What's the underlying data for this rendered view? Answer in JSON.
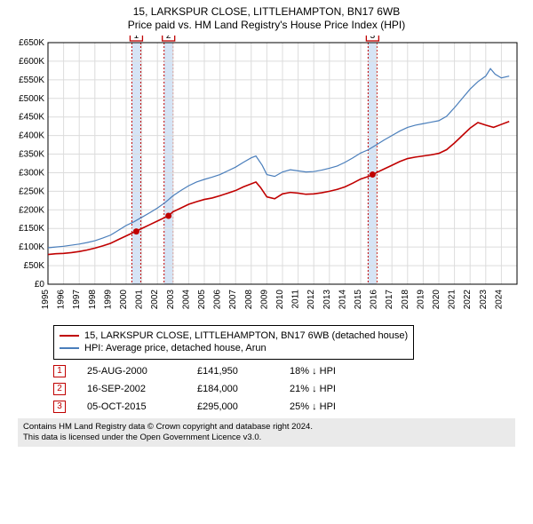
{
  "title_line1": "15, LARKSPUR CLOSE, LITTLEHAMPTON, BN17 6WB",
  "title_line2": "Price paid vs. HM Land Registry's House Price Index (HPI)",
  "chart": {
    "type": "line",
    "background_color": "#ffffff",
    "grid_color": "#dcdcdc",
    "x": {
      "min": 1995,
      "max": 2025,
      "tick_step": 1,
      "labels": [
        "1995",
        "1996",
        "1997",
        "1998",
        "1999",
        "2000",
        "2001",
        "2002",
        "2003",
        "2004",
        "2005",
        "2006",
        "2007",
        "2008",
        "2009",
        "2010",
        "2011",
        "2012",
        "2013",
        "2014",
        "2015",
        "2016",
        "2017",
        "2018",
        "2019",
        "2020",
        "2021",
        "2022",
        "2023",
        "2024"
      ]
    },
    "y": {
      "min": 0,
      "max": 650000,
      "tick_step": 50000,
      "labels": [
        "£0",
        "£50K",
        "£100K",
        "£150K",
        "£200K",
        "£250K",
        "£300K",
        "£350K",
        "£400K",
        "£450K",
        "£500K",
        "£550K",
        "£600K",
        "£650K"
      ]
    },
    "series": [
      {
        "name": "price_paid",
        "legend": "15, LARKSPUR CLOSE, LITTLEHAMPTON, BN17 6WB (detached house)",
        "color": "#c00000",
        "width": 1.6,
        "data": [
          [
            1995.0,
            80000
          ],
          [
            1995.5,
            82000
          ],
          [
            1996.0,
            83000
          ],
          [
            1996.5,
            85000
          ],
          [
            1997.0,
            88000
          ],
          [
            1997.5,
            92000
          ],
          [
            1998.0,
            97000
          ],
          [
            1998.5,
            103000
          ],
          [
            1999.0,
            110000
          ],
          [
            1999.5,
            120000
          ],
          [
            2000.0,
            130000
          ],
          [
            2000.6,
            141950
          ],
          [
            2001.0,
            150000
          ],
          [
            2001.5,
            160000
          ],
          [
            2002.0,
            170000
          ],
          [
            2002.7,
            184000
          ],
          [
            2003.0,
            195000
          ],
          [
            2003.5,
            205000
          ],
          [
            2004.0,
            215000
          ],
          [
            2004.5,
            222000
          ],
          [
            2005.0,
            228000
          ],
          [
            2005.5,
            232000
          ],
          [
            2006.0,
            238000
          ],
          [
            2006.5,
            245000
          ],
          [
            2007.0,
            252000
          ],
          [
            2007.5,
            262000
          ],
          [
            2008.0,
            270000
          ],
          [
            2008.3,
            275000
          ],
          [
            2008.6,
            260000
          ],
          [
            2009.0,
            235000
          ],
          [
            2009.5,
            230000
          ],
          [
            2010.0,
            243000
          ],
          [
            2010.5,
            247000
          ],
          [
            2011.0,
            245000
          ],
          [
            2011.5,
            242000
          ],
          [
            2012.0,
            243000
          ],
          [
            2012.5,
            246000
          ],
          [
            2013.0,
            250000
          ],
          [
            2013.5,
            255000
          ],
          [
            2014.0,
            262000
          ],
          [
            2014.5,
            272000
          ],
          [
            2015.0,
            283000
          ],
          [
            2015.5,
            290000
          ],
          [
            2015.8,
            295000
          ],
          [
            2016.0,
            300000
          ],
          [
            2016.5,
            310000
          ],
          [
            2017.0,
            320000
          ],
          [
            2017.5,
            330000
          ],
          [
            2018.0,
            338000
          ],
          [
            2018.5,
            342000
          ],
          [
            2019.0,
            345000
          ],
          [
            2019.5,
            348000
          ],
          [
            2020.0,
            352000
          ],
          [
            2020.5,
            362000
          ],
          [
            2021.0,
            380000
          ],
          [
            2021.5,
            400000
          ],
          [
            2022.0,
            420000
          ],
          [
            2022.5,
            435000
          ],
          [
            2023.0,
            428000
          ],
          [
            2023.5,
            422000
          ],
          [
            2024.0,
            430000
          ],
          [
            2024.5,
            438000
          ]
        ]
      },
      {
        "name": "hpi",
        "legend": "HPI: Average price, detached house, Arun",
        "color": "#4a7ebb",
        "width": 1.2,
        "data": [
          [
            1995.0,
            98000
          ],
          [
            1995.5,
            100000
          ],
          [
            1996.0,
            102000
          ],
          [
            1996.5,
            105000
          ],
          [
            1997.0,
            108000
          ],
          [
            1997.5,
            112000
          ],
          [
            1998.0,
            117000
          ],
          [
            1998.5,
            124000
          ],
          [
            1999.0,
            132000
          ],
          [
            1999.5,
            145000
          ],
          [
            2000.0,
            158000
          ],
          [
            2000.5,
            168000
          ],
          [
            2001.0,
            180000
          ],
          [
            2001.5,
            192000
          ],
          [
            2002.0,
            205000
          ],
          [
            2002.5,
            220000
          ],
          [
            2003.0,
            238000
          ],
          [
            2003.5,
            252000
          ],
          [
            2004.0,
            265000
          ],
          [
            2004.5,
            275000
          ],
          [
            2005.0,
            282000
          ],
          [
            2005.5,
            288000
          ],
          [
            2006.0,
            295000
          ],
          [
            2006.5,
            305000
          ],
          [
            2007.0,
            315000
          ],
          [
            2007.5,
            328000
          ],
          [
            2008.0,
            340000
          ],
          [
            2008.3,
            345000
          ],
          [
            2008.7,
            320000
          ],
          [
            2009.0,
            295000
          ],
          [
            2009.5,
            290000
          ],
          [
            2010.0,
            302000
          ],
          [
            2010.5,
            308000
          ],
          [
            2011.0,
            305000
          ],
          [
            2011.5,
            302000
          ],
          [
            2012.0,
            303000
          ],
          [
            2012.5,
            307000
          ],
          [
            2013.0,
            312000
          ],
          [
            2013.5,
            318000
          ],
          [
            2014.0,
            328000
          ],
          [
            2014.5,
            340000
          ],
          [
            2015.0,
            353000
          ],
          [
            2015.5,
            362000
          ],
          [
            2016.0,
            375000
          ],
          [
            2016.5,
            388000
          ],
          [
            2017.0,
            400000
          ],
          [
            2017.5,
            412000
          ],
          [
            2018.0,
            422000
          ],
          [
            2018.5,
            428000
          ],
          [
            2019.0,
            432000
          ],
          [
            2019.5,
            436000
          ],
          [
            2020.0,
            440000
          ],
          [
            2020.5,
            452000
          ],
          [
            2021.0,
            475000
          ],
          [
            2021.5,
            500000
          ],
          [
            2022.0,
            525000
          ],
          [
            2022.5,
            545000
          ],
          [
            2023.0,
            560000
          ],
          [
            2023.3,
            580000
          ],
          [
            2023.6,
            565000
          ],
          [
            2024.0,
            555000
          ],
          [
            2024.5,
            560000
          ]
        ]
      }
    ],
    "sale_bands": [
      {
        "x": 2000.65,
        "color_fill": "#d6e4f5",
        "color_stroke": "#c00000"
      },
      {
        "x": 2002.71,
        "color_fill": "#d6e4f5",
        "color_stroke": "#c00000"
      },
      {
        "x": 2015.76,
        "color_fill": "#d6e4f5",
        "color_stroke": "#c00000"
      }
    ],
    "sale_markers": [
      {
        "n": "1",
        "x": 2000.65,
        "y": 141950,
        "color": "#c00000"
      },
      {
        "n": "2",
        "x": 2002.71,
        "y": 184000,
        "color": "#c00000"
      },
      {
        "n": "3",
        "x": 2015.76,
        "y": 295000,
        "color": "#c00000"
      }
    ]
  },
  "sales": [
    {
      "n": "1",
      "date": "25-AUG-2000",
      "price": "£141,950",
      "diff": "18% ↓ HPI"
    },
    {
      "n": "2",
      "date": "16-SEP-2002",
      "price": "£184,000",
      "diff": "21% ↓ HPI"
    },
    {
      "n": "3",
      "date": "05-OCT-2015",
      "price": "£295,000",
      "diff": "25% ↓ HPI"
    }
  ],
  "attribution_line1": "Contains HM Land Registry data © Crown copyright and database right 2024.",
  "attribution_line2": "This data is licensed under the Open Government Licence v3.0."
}
